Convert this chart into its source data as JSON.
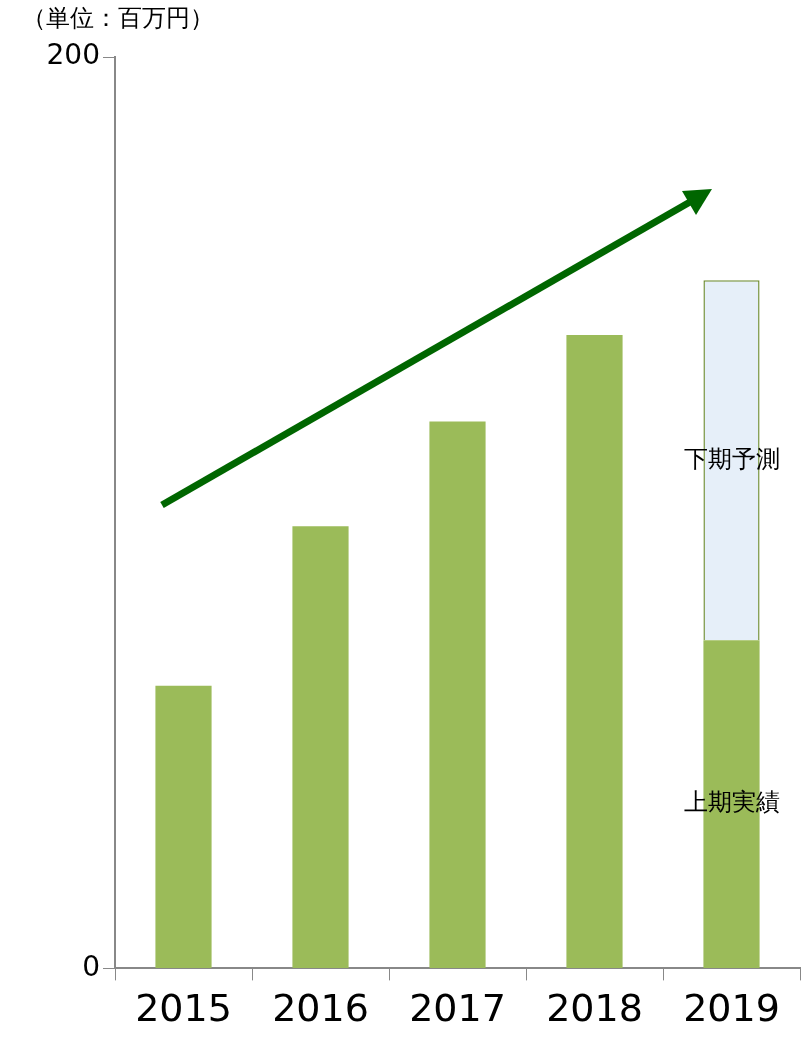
{
  "chart_data": {
    "type": "bar",
    "ylabel": "（単位：百万円）",
    "categories": [
      "2015",
      "2016",
      "2017",
      "2018",
      "2019"
    ],
    "stacked": true,
    "ylim": [
      0,
      200
    ],
    "yticks": [
      0,
      200
    ],
    "grid": false,
    "legend": false,
    "series": [
      {
        "name": "上期実績",
        "color": "#9bbb59",
        "values": [
          62,
          97,
          120,
          139,
          72
        ]
      },
      {
        "name": "下期予測",
        "color": "#e6eff9",
        "values": [
          null,
          null,
          null,
          null,
          79
        ]
      }
    ]
  }
}
